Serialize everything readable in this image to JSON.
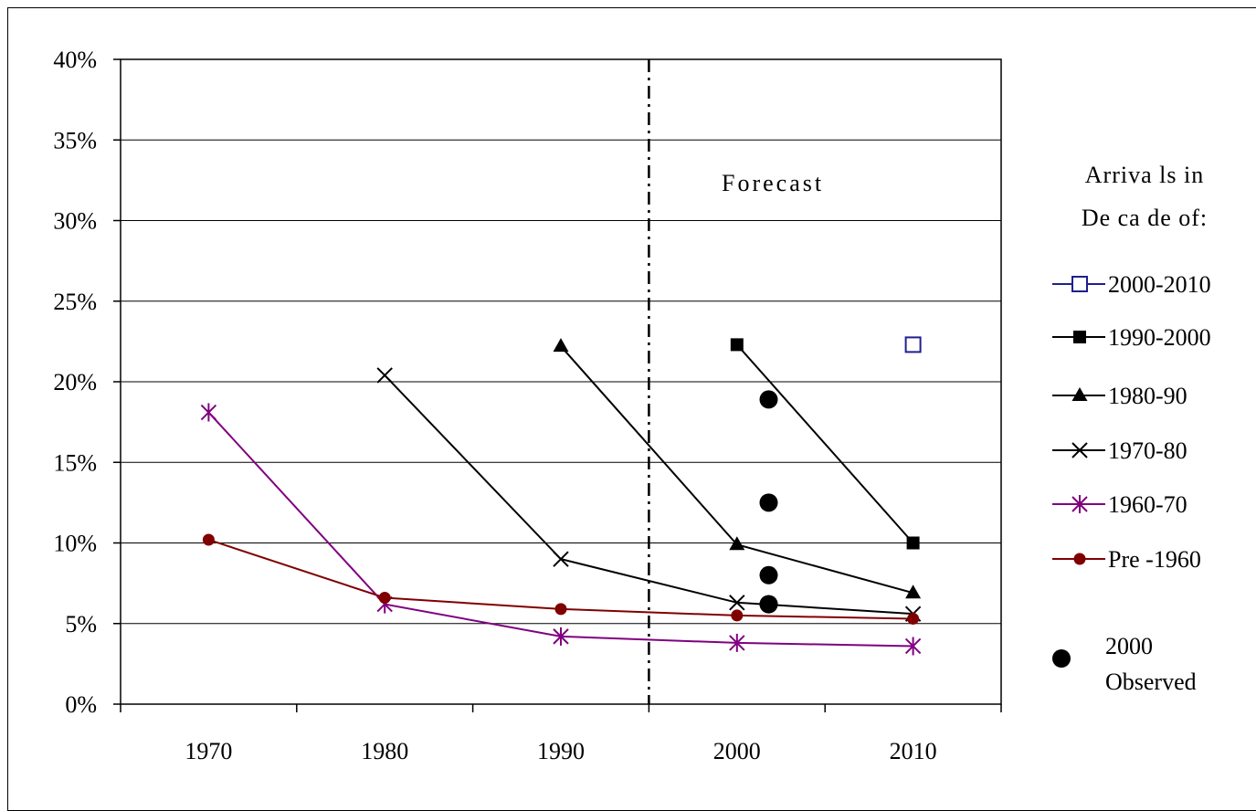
{
  "chart_data": {
    "type": "line",
    "x_ticks": [
      "1970",
      "1980",
      "1990",
      "2000",
      "2010"
    ],
    "y_ticks": [
      "0%",
      "5%",
      "10%",
      "15%",
      "20%",
      "25%",
      "30%",
      "35%",
      "40%"
    ],
    "ylim": [
      0,
      40
    ],
    "xlim": [
      1965,
      2015
    ],
    "grid": "horizontal",
    "forecast_divider_x": 1995,
    "forecast_label": "Forecast",
    "legend": {
      "title_line1": "Arriva ls in",
      "title_line2": "De ca de of:",
      "placement": "right"
    },
    "series": [
      {
        "name": "2000-2010",
        "color": "#1f1f8f",
        "marker": "open-square",
        "x": [
          2010
        ],
        "y": [
          22.3
        ]
      },
      {
        "name": "1990-2000",
        "color": "#000000",
        "marker": "square",
        "x": [
          2000,
          2010
        ],
        "y": [
          22.3,
          10.0
        ]
      },
      {
        "name": "1980-90",
        "color": "#000000",
        "marker": "triangle",
        "x": [
          1990,
          2000,
          2010
        ],
        "y": [
          22.2,
          9.9,
          6.9
        ]
      },
      {
        "name": "1970-80",
        "color": "#000000",
        "marker": "x",
        "x": [
          1980,
          1990,
          2000,
          2010
        ],
        "y": [
          20.4,
          9.0,
          6.3,
          5.6
        ]
      },
      {
        "name": "1960-70",
        "color": "#800080",
        "marker": "star",
        "x": [
          1970,
          1980,
          1990,
          2000,
          2010
        ],
        "y": [
          18.1,
          6.2,
          4.2,
          3.8,
          3.6
        ]
      },
      {
        "name": "Pre -1960",
        "color": "#800000",
        "marker": "circle",
        "x": [
          1970,
          1980,
          1990,
          2000,
          2010
        ],
        "y": [
          10.2,
          6.6,
          5.9,
          5.5,
          5.3
        ]
      }
    ],
    "observed": {
      "name": "2000 Observed",
      "name_line1": "2000",
      "name_line2": "Observed",
      "color": "#000000",
      "x": [
        2001.8,
        2001.8,
        2001.8,
        2001.8,
        2001.8
      ],
      "y": [
        18.9,
        12.5,
        8.0,
        6.2,
        6.2
      ]
    }
  }
}
